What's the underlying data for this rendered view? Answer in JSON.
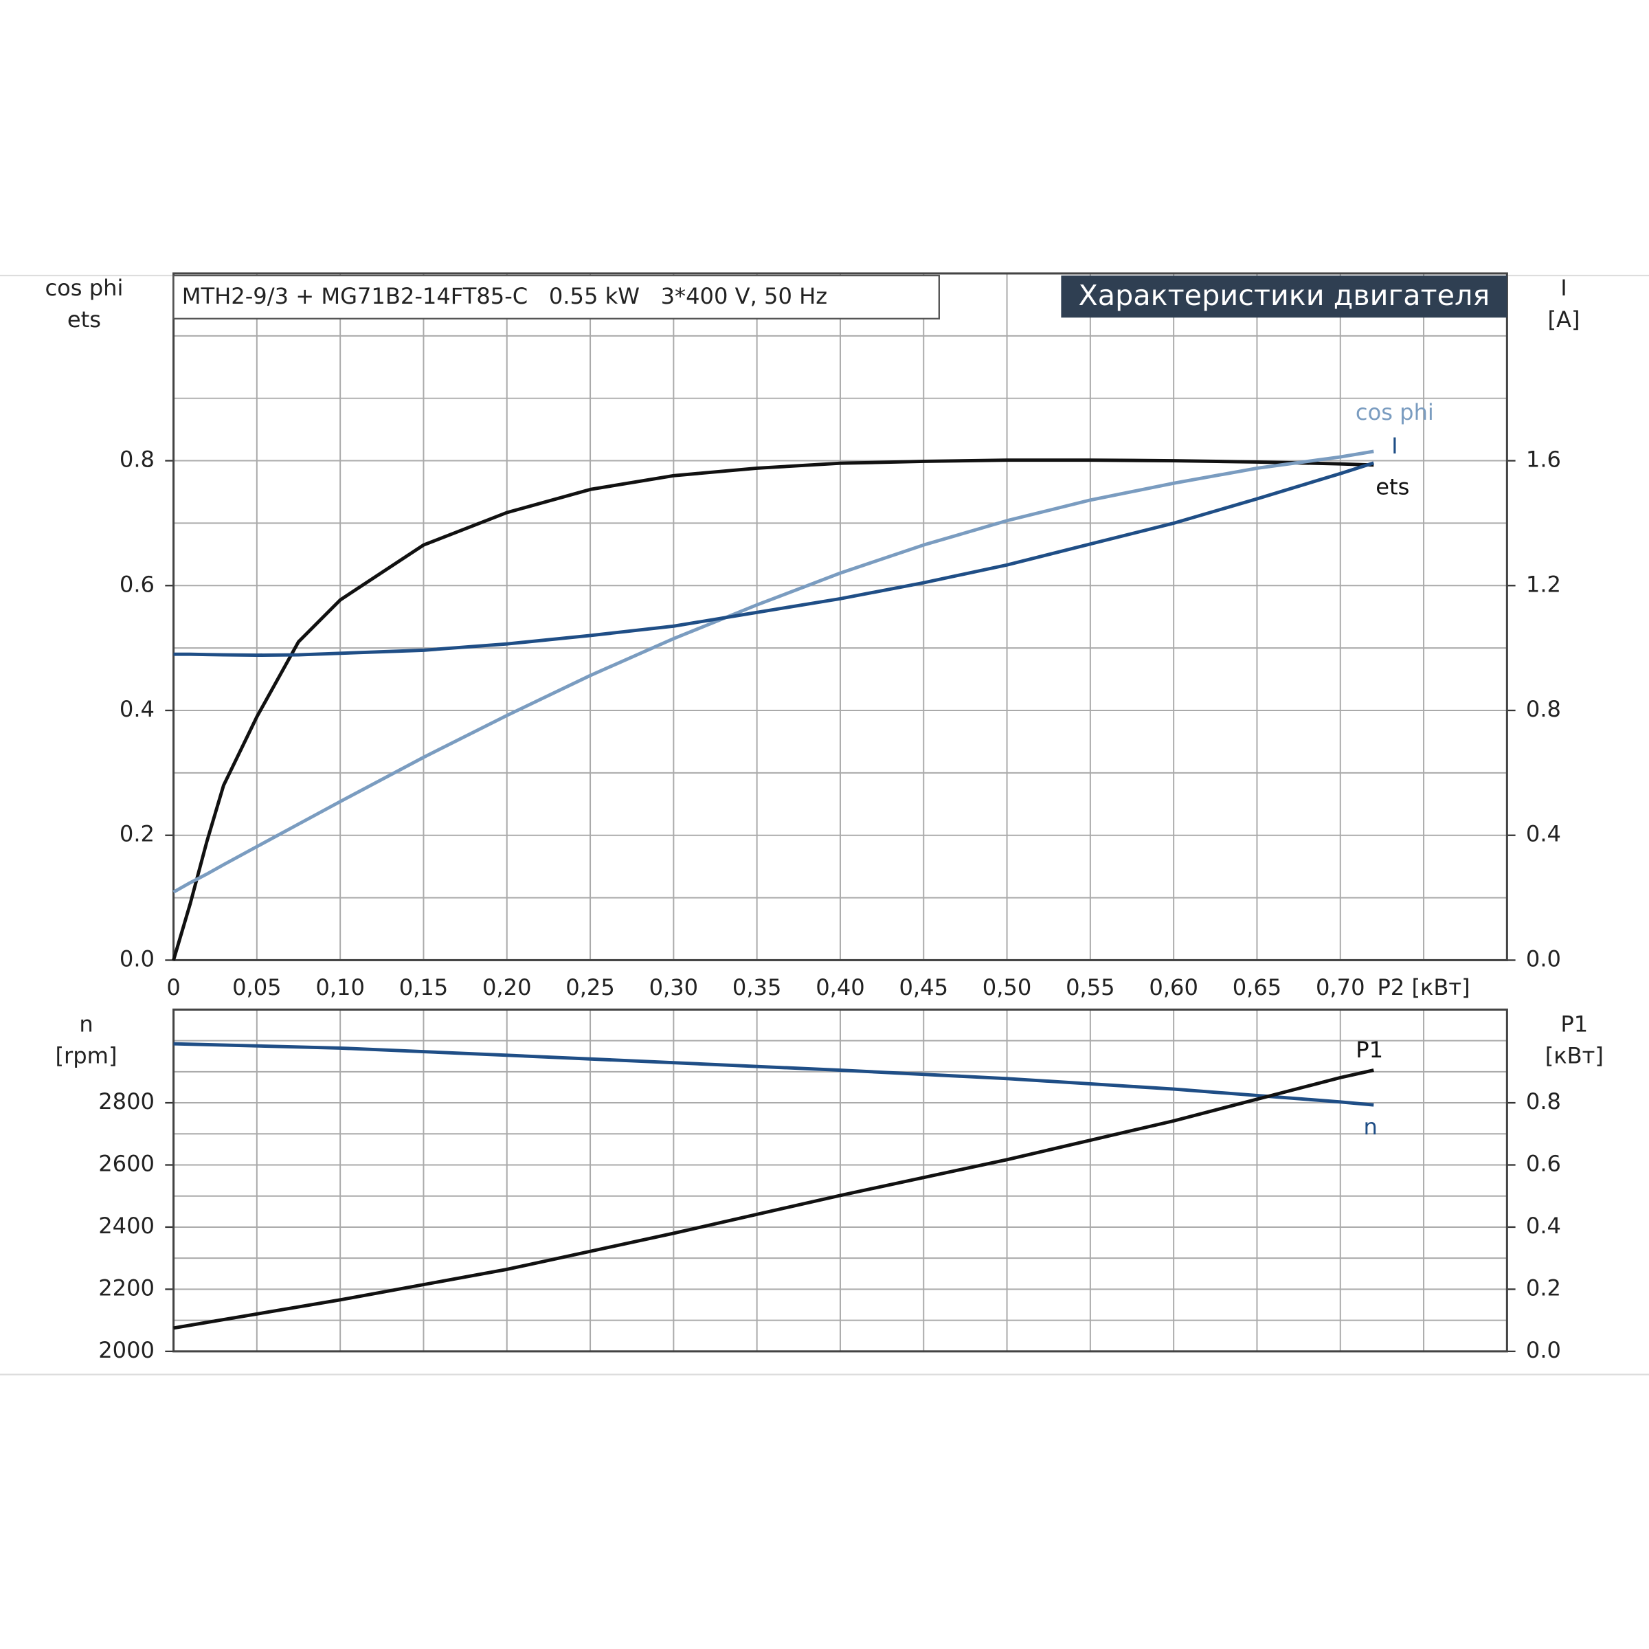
{
  "chart_data": [
    {
      "type": "line",
      "title": "MTH2-9/3 + MG71B2-14FT85-C   0.55 kW   3*400 V, 50 Hz",
      "subtitle": "Характеристики двигателя",
      "xlabel": "P2 [кВт]",
      "ylabel": [
        "cos phi",
        "ets"
      ],
      "y2label": [
        "I",
        "[A]"
      ],
      "x": [
        0,
        0.01,
        0.02,
        0.03,
        0.05,
        0.075,
        0.1,
        0.15,
        0.2,
        0.25,
        0.3,
        0.35,
        0.4,
        0.45,
        0.5,
        0.55,
        0.6,
        0.65,
        0.7,
        0.72
      ],
      "series": [
        {
          "name": "ets",
          "color": "#111111",
          "values": [
            0,
            0.09,
            0.19,
            0.28,
            0.39,
            0.51,
            0.577,
            0.665,
            0.717,
            0.754,
            0.776,
            0.788,
            0.796,
            0.799,
            0.801,
            0.801,
            0.8,
            0.798,
            0.795,
            0.793
          ]
        },
        {
          "name": "cos phi",
          "color": "#7a9cc0",
          "values": [
            0.109,
            0.124,
            0.138,
            0.153,
            0.182,
            0.218,
            0.254,
            0.325,
            0.392,
            0.456,
            0.515,
            0.569,
            0.62,
            0.665,
            0.704,
            0.737,
            0.764,
            0.788,
            0.806,
            0.815
          ]
        },
        {
          "name": "I",
          "color": "#1f4e86",
          "axis": "y2",
          "values": [
            0.98,
            0.98,
            0.979,
            0.978,
            0.977,
            0.978,
            0.983,
            0.993,
            1.013,
            1.04,
            1.07,
            1.114,
            1.158,
            1.209,
            1.266,
            1.333,
            1.4,
            1.478,
            1.559,
            1.593
          ]
        }
      ],
      "xlim": [
        0,
        0.8
      ],
      "xticks": [
        0,
        {
          "value": 0.05,
          "label": "0,05"
        },
        {
          "value": 0.1,
          "label": "0,10"
        },
        {
          "value": 0.15,
          "label": "0,15"
        },
        {
          "value": 0.2,
          "label": "0,20"
        },
        {
          "value": 0.25,
          "label": "0,25"
        },
        {
          "value": 0.3,
          "label": "0,30"
        },
        {
          "value": 0.35,
          "label": "0,35"
        },
        {
          "value": 0.4,
          "label": "0,40"
        },
        {
          "value": 0.45,
          "label": "0,45"
        },
        {
          "value": 0.5,
          "label": "0,50"
        },
        {
          "value": 0.55,
          "label": "0,55"
        },
        {
          "value": 0.6,
          "label": "0,60"
        },
        {
          "value": 0.65,
          "label": "0,65"
        },
        {
          "value": 0.7,
          "label": "0,70"
        }
      ],
      "xminorticks": [
        0.75
      ],
      "ylim": [
        0,
        1.1
      ],
      "yticks": [
        {
          "value": 0,
          "label": "0.0"
        },
        0.2,
        0.4,
        0.6,
        0.8
      ],
      "yminorticks": [
        0.1,
        0.3,
        0.5,
        0.7,
        0.9,
        1.0
      ],
      "y2lim": [
        0,
        2.2
      ],
      "y2ticks": [
        {
          "value": 0,
          "label": "0.0"
        },
        0.4,
        0.8,
        1.2,
        1.6
      ],
      "grid": true
    },
    {
      "type": "line",
      "ylabel": [
        "n",
        "[rpm]"
      ],
      "y2label": [
        "P1",
        "[кВт]"
      ],
      "x": [
        0,
        0.1,
        0.2,
        0.3,
        0.4,
        0.5,
        0.6,
        0.7,
        0.72
      ],
      "series": [
        {
          "name": "n",
          "color": "#1f4e86",
          "values": [
            2990,
            2976,
            2953,
            2929,
            2905,
            2878,
            2844,
            2803,
            2793
          ]
        },
        {
          "name": "P1",
          "color": "#111111",
          "axis": "y2",
          "values": [
            0.075,
            0.166,
            0.264,
            0.38,
            0.502,
            0.617,
            0.742,
            0.881,
            0.905
          ]
        }
      ],
      "xlim": [
        0,
        0.8
      ],
      "ylim": [
        2000,
        3100
      ],
      "yticks": [
        2000,
        2200,
        2400,
        2600,
        2800
      ],
      "yminorticks": [
        2100,
        2300,
        2500,
        2700,
        2900,
        3000
      ],
      "y2lim": [
        0,
        1.1
      ],
      "y2ticks": [
        {
          "value": 0,
          "label": "0.0"
        },
        0.2,
        0.4,
        0.6,
        0.8
      ],
      "grid": true
    }
  ]
}
